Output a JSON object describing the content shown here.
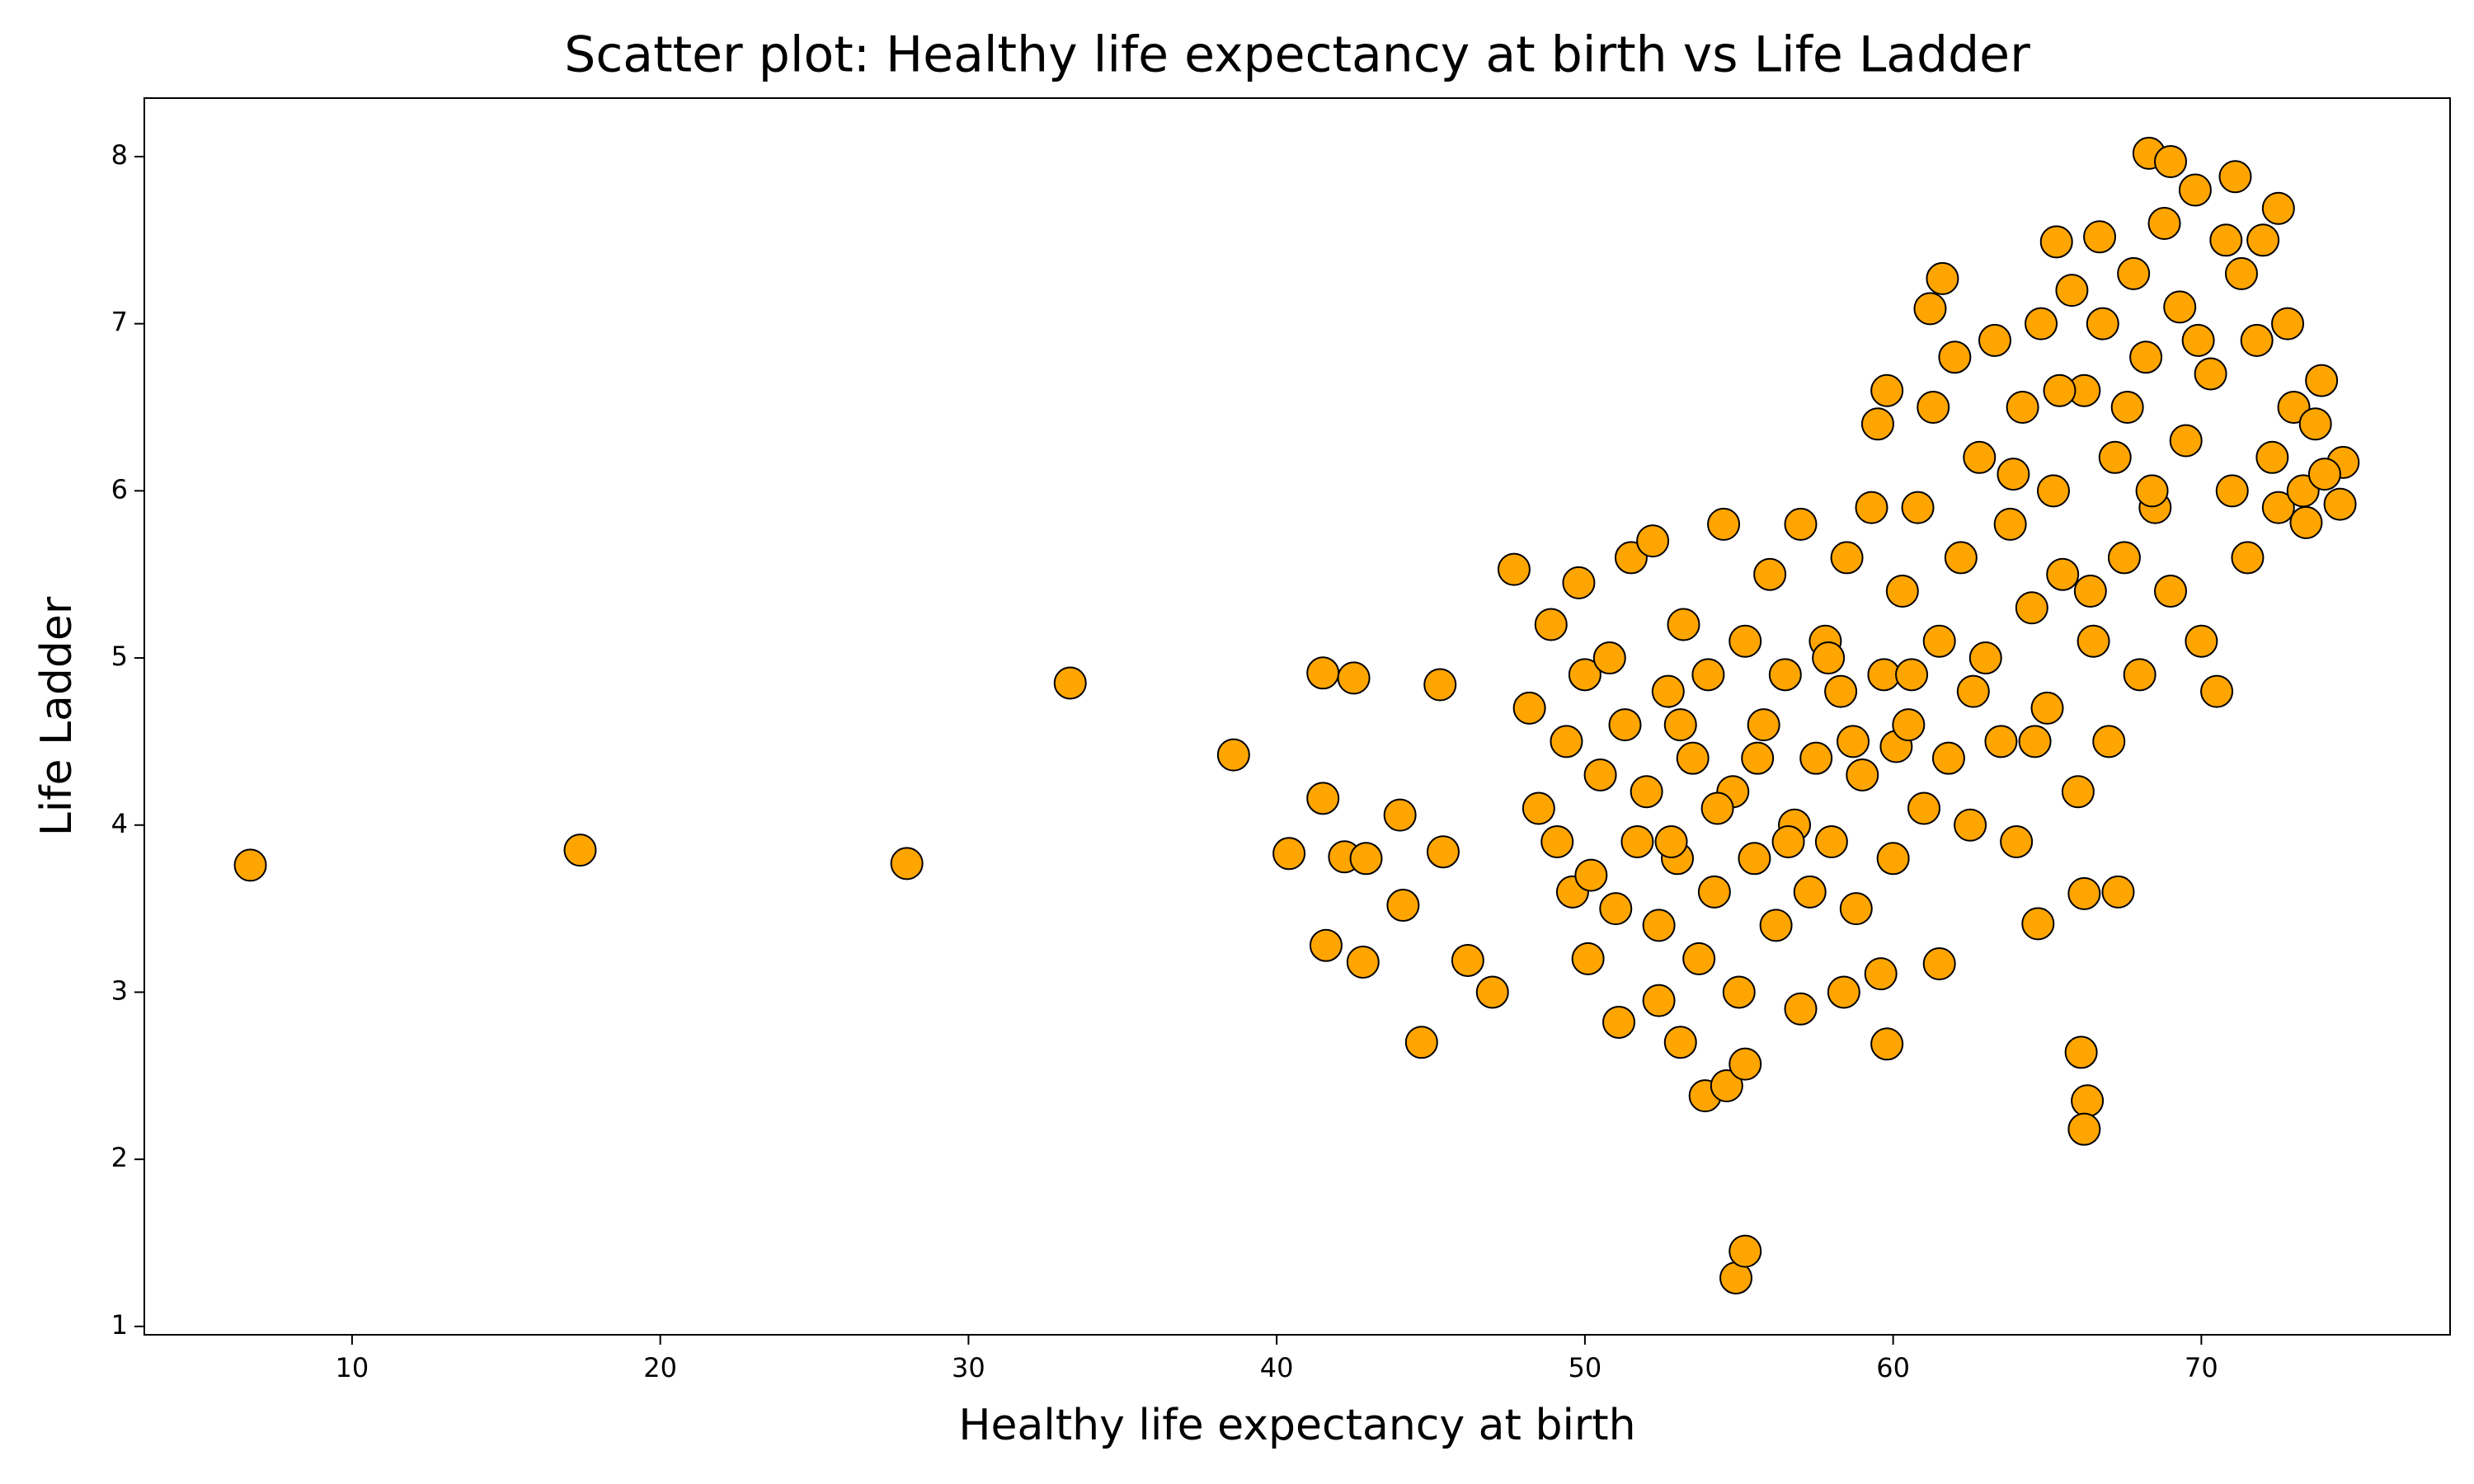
{
  "chart_data": {
    "type": "scatter",
    "title": "Scatter plot: Healthy life expectancy at birth vs Life Ladder",
    "x_label": "Healthy life expectancy at birth",
    "y_label": "Life Ladder",
    "color": "#ffa500",
    "edgecolor": "#000000",
    "x": [
      6.7,
      17.4,
      28,
      33.3,
      38.6,
      40.4,
      41.5,
      41.5,
      41.6,
      42.5,
      42.2,
      42.8,
      42.9,
      44,
      44.1,
      44.7,
      45.3,
      45.4,
      46.2,
      47,
      47.7,
      49.8,
      50.1,
      51.1,
      52.4,
      53.1,
      53.9,
      54.6,
      55.2,
      54.9,
      55.2,
      66.1,
      66.3,
      66.2,
      64.7,
      66.2,
      67.3,
      61.2,
      61.6,
      65.3,
      66.7,
      68.3,
      69,
      71.1,
      72.5,
      73.9,
      74.6,
      74.5,
      73.4,
      60.1,
      57,
      58.4,
      59.8,
      59.6,
      61.5,
      48.2,
      48.5,
      48.9,
      49.1,
      49.4,
      49.6,
      50.0,
      50.2,
      50.5,
      50.8,
      51.0,
      51.3,
      51.5,
      51.7,
      52.0,
      52.2,
      52.4,
      52.7,
      53.0,
      53.2,
      53.5,
      53.7,
      54.0,
      54.2,
      54.5,
      54.8,
      55.0,
      55.2,
      55.5,
      55.8,
      56.0,
      56.2,
      56.5,
      56.8,
      57.0,
      57.3,
      57.5,
      57.8,
      58.0,
      58.3,
      58.5,
      58.8,
      59.0,
      59.3,
      59.5,
      59.8,
      59.7,
      60.0,
      60.3,
      60.5,
      60.8,
      61.0,
      61.3,
      61.5,
      61.8,
      62.0,
      62.2,
      62.5,
      62.8,
      63.0,
      63.3,
      63.5,
      63.8,
      64.0,
      64.2,
      64.5,
      64.8,
      65.0,
      65.2,
      65.5,
      65.8,
      66.0,
      66.2,
      66.5,
      66.8,
      67.0,
      67.2,
      67.5,
      67.8,
      68.0,
      68.2,
      68.5,
      68.8,
      69.0,
      69.3,
      69.5,
      69.8,
      70.0,
      70.3,
      70.5,
      70.8,
      71.0,
      71.3,
      71.5,
      71.8,
      72.0,
      72.3,
      72.5,
      72.8,
      73.0,
      73.3,
      73.7,
      74.0,
      53.1,
      54.3,
      56.6,
      58.7,
      60.6,
      62.6,
      64.6,
      66.4,
      68.4,
      69.9,
      57.9,
      52.8,
      55.6,
      63.9,
      65.4,
      67.6
    ],
    "y": [
      3.76,
      3.85,
      3.77,
      4.85,
      4.42,
      3.83,
      4.91,
      4.16,
      3.28,
      4.88,
      3.81,
      3.18,
      3.8,
      4.06,
      3.52,
      2.7,
      4.84,
      3.84,
      3.19,
      3.0,
      5.53,
      5.45,
      3.2,
      2.82,
      2.95,
      2.7,
      2.38,
      2.44,
      2.57,
      1.29,
      1.45,
      2.64,
      2.35,
      2.18,
      3.41,
      3.59,
      3.6,
      7.09,
      7.27,
      7.49,
      7.52,
      8.02,
      7.97,
      7.88,
      7.69,
      6.66,
      6.17,
      5.92,
      5.81,
      4.47,
      2.9,
      3.0,
      2.69,
      3.11,
      3.17,
      4.7,
      4.1,
      5.2,
      3.9,
      4.5,
      3.6,
      4.9,
      3.7,
      4.3,
      5.0,
      3.5,
      4.6,
      5.6,
      3.9,
      4.2,
      5.7,
      3.4,
      4.8,
      3.8,
      5.2,
      4.4,
      3.2,
      4.9,
      3.6,
      5.8,
      4.2,
      3.0,
      5.1,
      3.8,
      4.6,
      5.5,
      3.4,
      4.9,
      4.0,
      5.8,
      3.6,
      4.4,
      5.1,
      3.9,
      4.8,
      5.6,
      3.5,
      4.3,
      5.9,
      6.4,
      6.6,
      4.9,
      3.8,
      5.4,
      4.6,
      5.9,
      4.1,
      6.5,
      5.1,
      4.4,
      6.8,
      5.6,
      4.0,
      6.2,
      5.0,
      6.9,
      4.5,
      5.8,
      3.9,
      6.5,
      5.3,
      7.0,
      4.7,
      6.0,
      5.5,
      7.2,
      4.2,
      6.6,
      5.1,
      7.0,
      4.5,
      6.2,
      5.6,
      7.3,
      4.9,
      6.8,
      5.9,
      7.6,
      5.4,
      7.1,
      6.3,
      7.8,
      5.1,
      6.7,
      4.8,
      7.5,
      6.0,
      7.3,
      5.6,
      6.9,
      7.5,
      6.2,
      5.9,
      7.0,
      6.5,
      6.0,
      6.4,
      6.1,
      4.6,
      4.1,
      3.9,
      4.5,
      4.9,
      4.8,
      4.5,
      5.4,
      6.0,
      6.9,
      5.0,
      3.9,
      4.4,
      6.1,
      6.6,
      6.5
    ],
    "xlim": [
      3.26,
      78.07
    ],
    "ylim": [
      0.95,
      8.35
    ],
    "xticks": [
      10,
      20,
      30,
      40,
      50,
      60,
      70
    ],
    "yticks": [
      1,
      2,
      3,
      4,
      5,
      6,
      7,
      8
    ]
  }
}
